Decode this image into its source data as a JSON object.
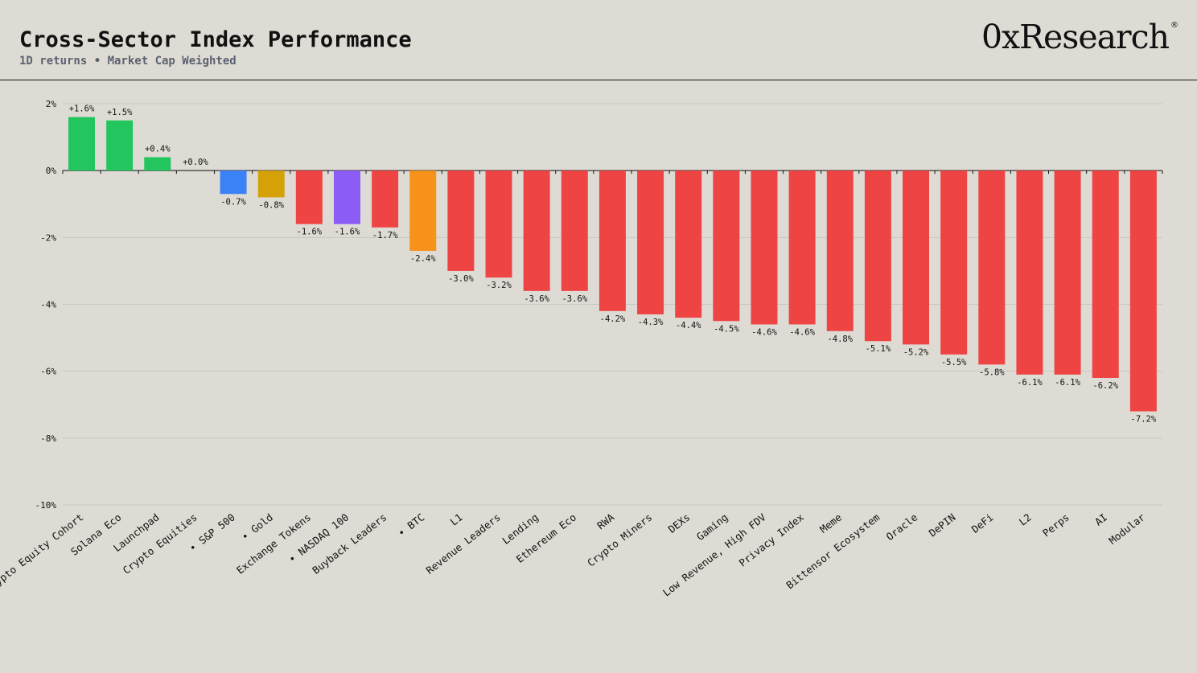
{
  "header": {
    "title": "Cross-Sector Index Performance",
    "subtitle": "1D returns • Market Cap Weighted",
    "brand": "0xResearch",
    "brand_mark": "®"
  },
  "colors": {
    "positive": "#22c55e",
    "negative": "#ef4444",
    "sp500": "#3b82f6",
    "gold": "#d4a106",
    "nasdaq": "#8b5cf6",
    "btc": "#f7931a",
    "grid": "#c9c6bf",
    "axis": "#111111"
  },
  "chart_data": {
    "type": "bar",
    "title": "Cross-Sector Index Performance",
    "subtitle": "1D returns • Market Cap Weighted",
    "xlabel": "",
    "ylabel": "",
    "ylim": [
      -10,
      2
    ],
    "yticks": [
      2,
      0,
      -2,
      -4,
      -6,
      -8,
      -10
    ],
    "ytick_format": "%",
    "grid": true,
    "legend": "none",
    "categories": [
      "Crypto Equity Cohort",
      "Solana Eco",
      "Launchpad",
      "Crypto Equities",
      "• S&P 500",
      "• Gold",
      "Exchange Tokens",
      "• NASDAQ 100",
      "Buyback Leaders",
      "• BTC",
      "L1",
      "Revenue Leaders",
      "Lending",
      "Ethereum Eco",
      "RWA",
      "Crypto Miners",
      "DEXs",
      "Gaming",
      "Low Revenue, High FDV",
      "Privacy Index",
      "Meme",
      "Bittensor Ecosystem",
      "Oracle",
      "DePIN",
      "DeFi",
      "L2",
      "Perps",
      "AI",
      "Modular"
    ],
    "values": [
      1.6,
      1.5,
      0.4,
      0.0,
      -0.7,
      -0.8,
      -1.6,
      -1.6,
      -1.7,
      -2.4,
      -3.0,
      -3.2,
      -3.6,
      -3.6,
      -4.2,
      -4.3,
      -4.4,
      -4.5,
      -4.6,
      -4.6,
      -4.8,
      -5.1,
      -5.2,
      -5.5,
      -5.8,
      -6.1,
      -6.1,
      -6.2,
      -7.2
    ],
    "labels": [
      "+1.6%",
      "+1.5%",
      "+0.4%",
      "+0.0%",
      "-0.7%",
      "-0.8%",
      "-1.6%",
      "-1.6%",
      "-1.7%",
      "-2.4%",
      "-3.0%",
      "-3.2%",
      "-3.6%",
      "-3.6%",
      "-4.2%",
      "-4.3%",
      "-4.4%",
      "-4.5%",
      "-4.6%",
      "-4.6%",
      "-4.8%",
      "-5.1%",
      "-5.2%",
      "-5.5%",
      "-5.8%",
      "-6.1%",
      "-6.1%",
      "-6.2%",
      "-7.2%"
    ],
    "bar_colors": [
      "positive",
      "positive",
      "positive",
      "positive",
      "sp500",
      "gold",
      "negative",
      "nasdaq",
      "negative",
      "btc",
      "negative",
      "negative",
      "negative",
      "negative",
      "negative",
      "negative",
      "negative",
      "negative",
      "negative",
      "negative",
      "negative",
      "negative",
      "negative",
      "negative",
      "negative",
      "negative",
      "negative",
      "negative",
      "negative"
    ]
  }
}
